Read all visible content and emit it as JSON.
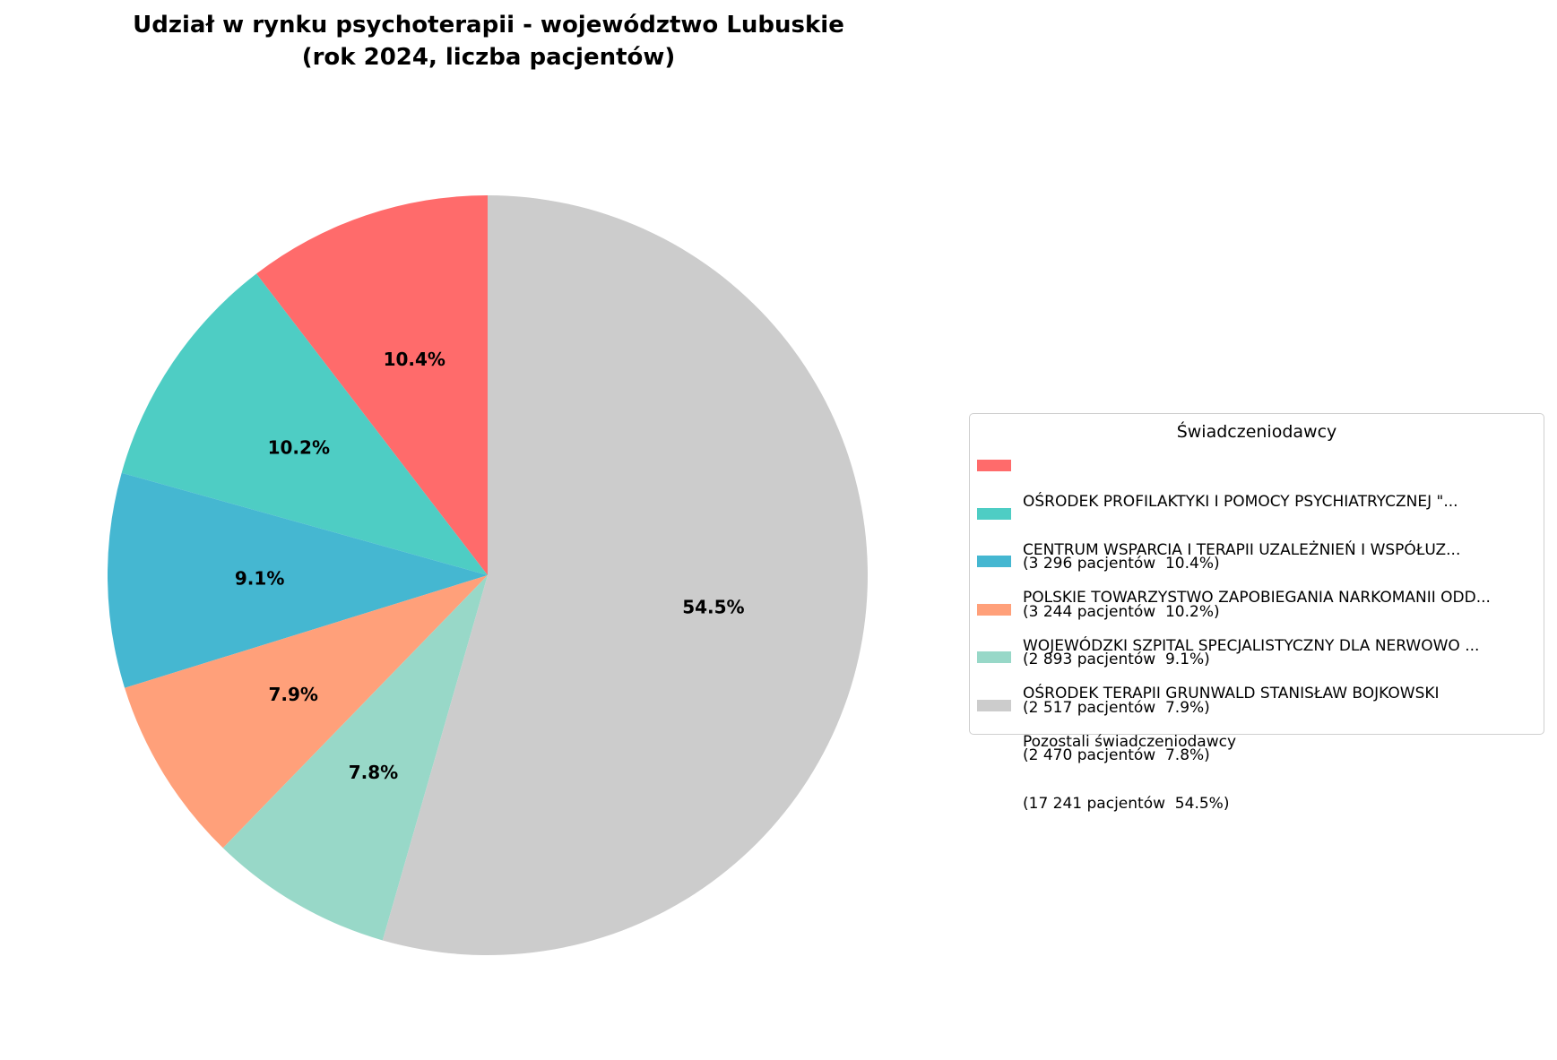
{
  "chart_data": {
    "type": "pie",
    "title_line1": "Udział w rynku psychoterapii - województwo Lubuskie",
    "title_line2": "(rok 2024, liczba pacjentów)",
    "legend_title": "Świadczeniodawcy",
    "legend_position": "right",
    "start_angle_deg": 90,
    "direction": "counterclockwise",
    "slices": [
      {
        "name": "OŚRODEK PROFILAKTYKI I POMOCY PSYCHIATRYCZNEJ \"...",
        "value": 3296,
        "percent_label": "10.4%",
        "detail": "(3 296 pacjentów  10.4%)",
        "color": "#ff6b6b"
      },
      {
        "name": "CENTRUM WSPARCIA I TERAPII UZALEŻNIEŃ I WSPÓŁUZ...",
        "value": 3244,
        "percent_label": "10.2%",
        "detail": "(3 244 pacjentów  10.2%)",
        "color": "#4ecdc4"
      },
      {
        "name": "POLSKIE TOWARZYSTWO ZAPOBIEGANIA NARKOMANII ODD...",
        "value": 2893,
        "percent_label": "9.1%",
        "detail": "(2 893 pacjentów  9.1%)",
        "color": "#45b7d1"
      },
      {
        "name": "WOJEWÓDZKI SZPITAL SPECJALISTYCZNY DLA NERWOWO ...",
        "value": 2517,
        "percent_label": "7.9%",
        "detail": "(2 517 pacjentów  7.9%)",
        "color": "#ffa07a"
      },
      {
        "name": "OŚRODEK TERAPII GRUNWALD STANISŁAW BOJKOWSKI",
        "value": 2470,
        "percent_label": "7.8%",
        "detail": "(2 470 pacjentów  7.8%)",
        "color": "#98d8c8"
      },
      {
        "name": "Pozostali świadczeniodawcy",
        "value": 17241,
        "percent_label": "54.5%",
        "detail": "(17 241 pacjentów  54.5%)",
        "color": "#cccccc"
      }
    ]
  }
}
